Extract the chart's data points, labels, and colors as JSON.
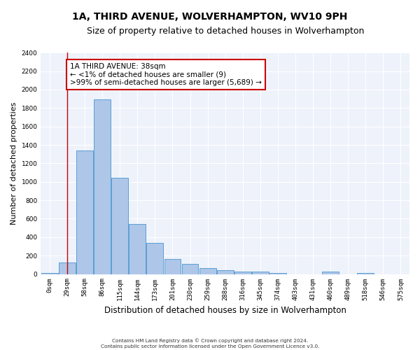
{
  "title": "1A, THIRD AVENUE, WOLVERHAMPTON, WV10 9PH",
  "subtitle": "Size of property relative to detached houses in Wolverhampton",
  "xlabel": "Distribution of detached houses by size in Wolverhampton",
  "ylabel": "Number of detached properties",
  "bar_color": "#aec6e8",
  "bar_edge_color": "#5a9fd4",
  "categories": [
    "0sqm",
    "29sqm",
    "58sqm",
    "86sqm",
    "115sqm",
    "144sqm",
    "173sqm",
    "201sqm",
    "230sqm",
    "259sqm",
    "288sqm",
    "316sqm",
    "345sqm",
    "374sqm",
    "403sqm",
    "431sqm",
    "460sqm",
    "489sqm",
    "518sqm",
    "546sqm",
    "575sqm"
  ],
  "values": [
    15,
    125,
    1340,
    1890,
    1045,
    540,
    335,
    165,
    110,
    65,
    40,
    30,
    25,
    15,
    0,
    0,
    25,
    0,
    15,
    0,
    0
  ],
  "ylim": [
    0,
    2400
  ],
  "yticks": [
    0,
    200,
    400,
    600,
    800,
    1000,
    1200,
    1400,
    1600,
    1800,
    2000,
    2200,
    2400
  ],
  "red_line_x": 1.0,
  "annotation_text": "1A THIRD AVENUE: 38sqm\n← <1% of detached houses are smaller (9)\n>99% of semi-detached houses are larger (5,689) →",
  "annotation_box_color": "#ffffff",
  "annotation_border_color": "#cc0000",
  "footer_line1": "Contains HM Land Registry data © Crown copyright and database right 2024.",
  "footer_line2": "Contains public sector information licensed under the Open Government Licence v3.0.",
  "background_color": "#eef2fb",
  "fig_background_color": "#ffffff",
  "grid_color": "#ffffff",
  "title_fontsize": 10,
  "subtitle_fontsize": 9,
  "tick_fontsize": 6.5,
  "ylabel_fontsize": 8,
  "xlabel_fontsize": 8.5,
  "annotation_fontsize": 7.5
}
